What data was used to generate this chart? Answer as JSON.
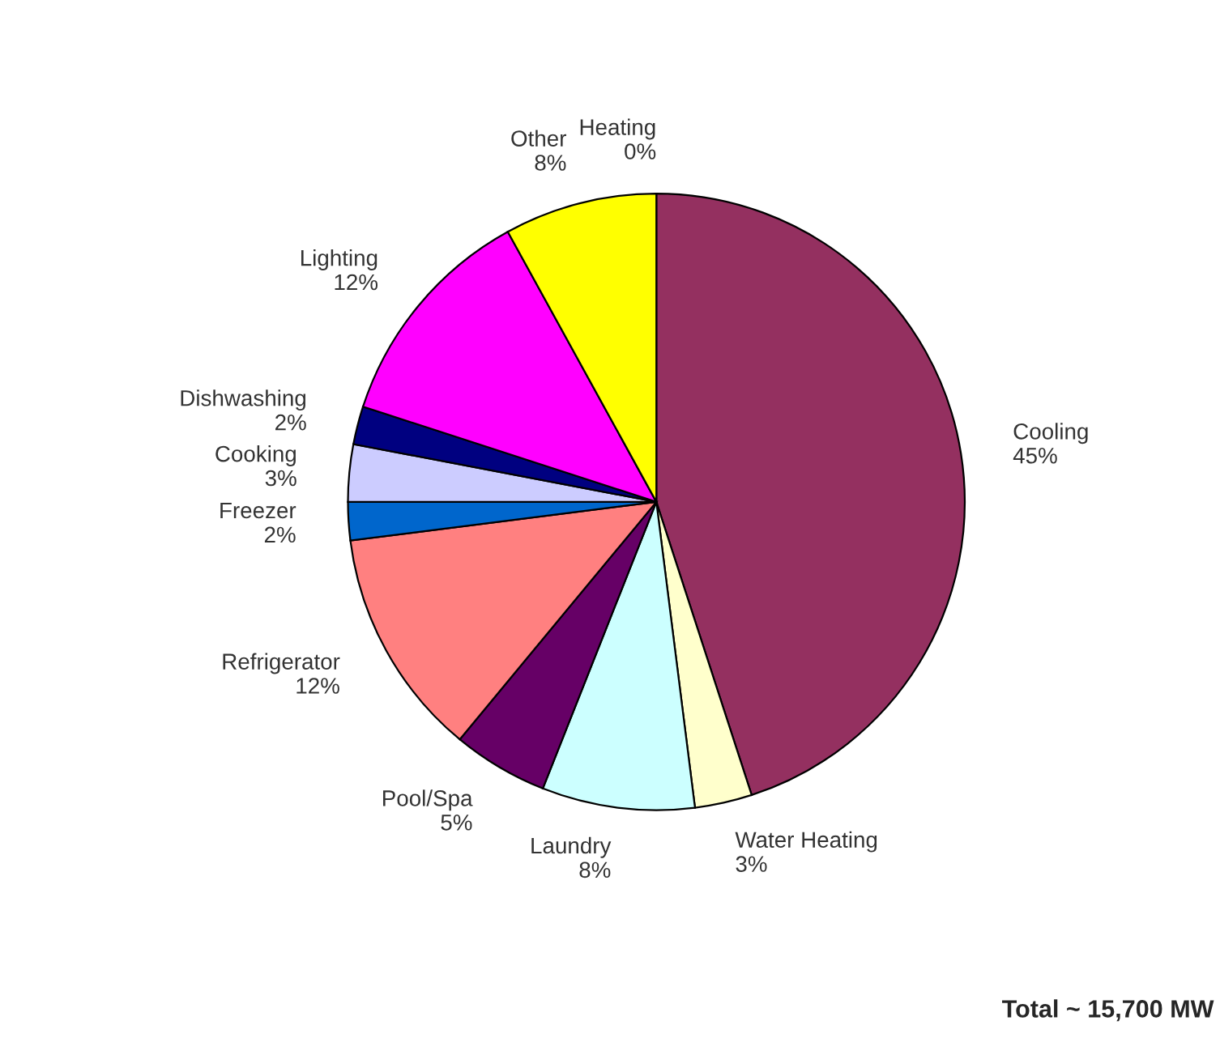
{
  "chart_data": {
    "type": "pie",
    "categories": [
      "Heating",
      "Cooling",
      "Water Heating",
      "Laundry",
      "Pool/Spa",
      "Refrigerator",
      "Freezer",
      "Cooking",
      "Dishwashing",
      "Lighting",
      "Other"
    ],
    "values": [
      0,
      45,
      3,
      8,
      5,
      12,
      2,
      3,
      2,
      12,
      8
    ],
    "value_labels": [
      "0%",
      "45%",
      "3%",
      "8%",
      "5%",
      "12%",
      "2%",
      "3%",
      "2%",
      "12%",
      "8%"
    ],
    "colors": [
      "#9999ff",
      "#943060",
      "#ffffcc",
      "#ccffff",
      "#660066",
      "#ff8080",
      "#0066cc",
      "#ccccff",
      "#000080",
      "#ff00ff",
      "#ffff00"
    ],
    "annotations": [
      "Total ~ 15,700 MW"
    ]
  }
}
